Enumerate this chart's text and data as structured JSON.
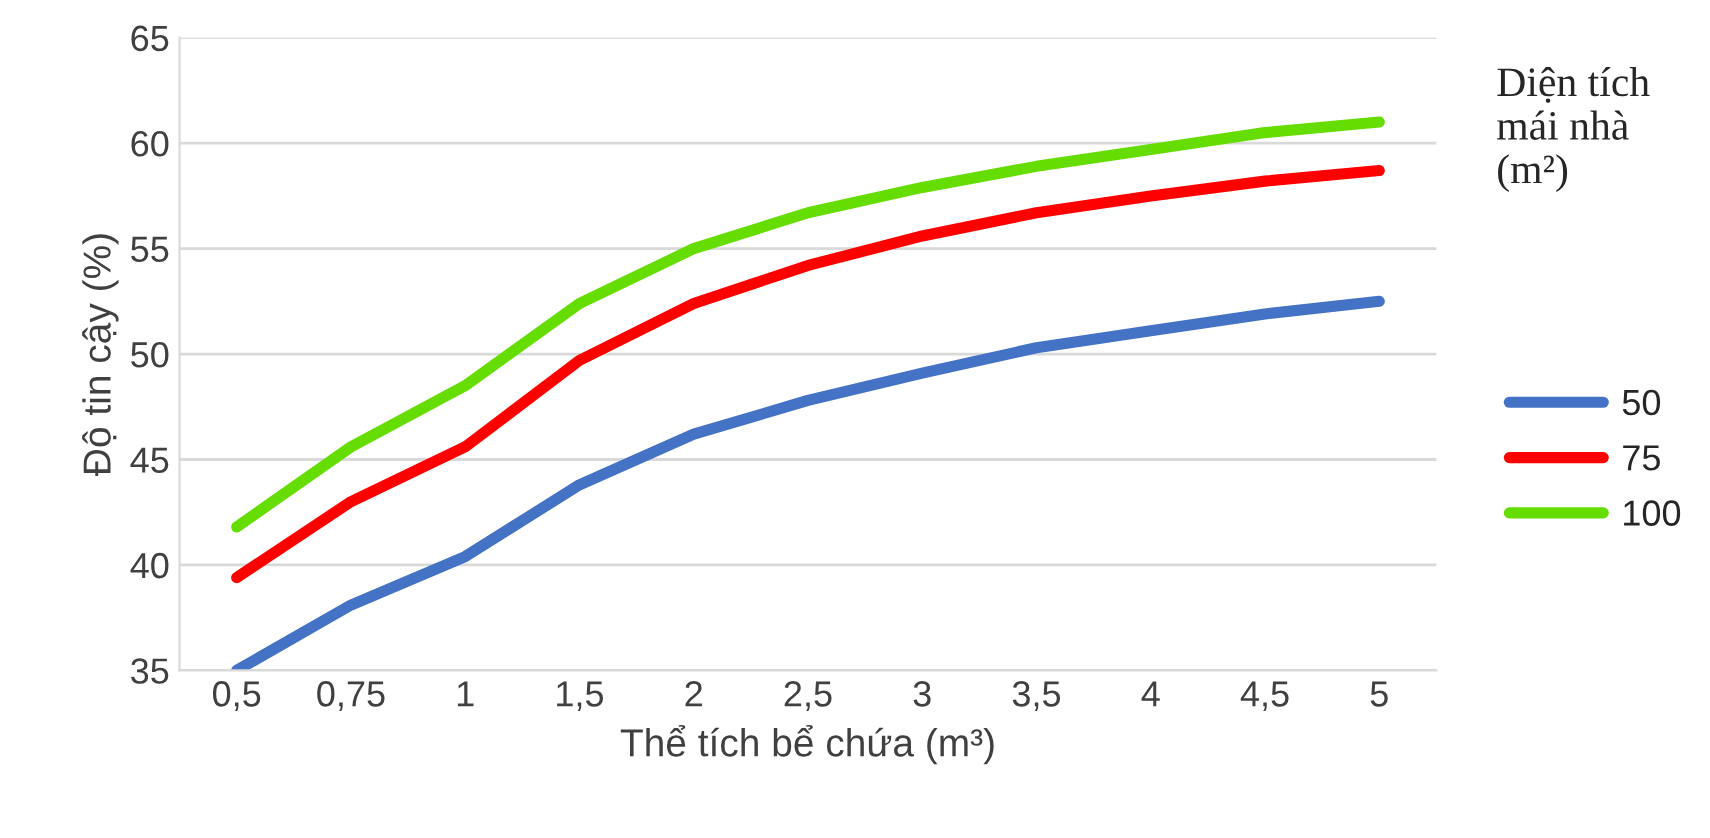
{
  "chart_data": {
    "type": "line",
    "xlabel": "Thể tích bể chứa (m³)",
    "ylabel": "Độ tin cậy (%)",
    "legend_title": "Diện tích mái nhà (m²)",
    "categories": [
      "0,5",
      "0,75",
      "1",
      "1,5",
      "2",
      "2,5",
      "3",
      "3,5",
      "4",
      "4,5",
      "5"
    ],
    "series": [
      {
        "name": "50",
        "color": "#4472c4",
        "values": [
          35.0,
          38.1,
          40.4,
          43.8,
          46.2,
          47.8,
          49.1,
          50.3,
          51.1,
          51.9,
          52.5
        ]
      },
      {
        "name": "75",
        "color": "#ff0000",
        "values": [
          39.4,
          43.0,
          45.6,
          49.7,
          52.4,
          54.2,
          55.6,
          56.7,
          57.5,
          58.2,
          58.7
        ]
      },
      {
        "name": "100",
        "color": "#66dd00",
        "values": [
          41.8,
          45.6,
          48.5,
          52.4,
          55.0,
          56.7,
          57.9,
          58.9,
          59.7,
          60.5,
          61.0
        ]
      }
    ],
    "ylim": [
      35,
      65
    ],
    "yticks": [
      35,
      40,
      45,
      50,
      55,
      60,
      65
    ],
    "grid": "y",
    "legend": "right",
    "marker": "none",
    "line_style": "solid"
  }
}
